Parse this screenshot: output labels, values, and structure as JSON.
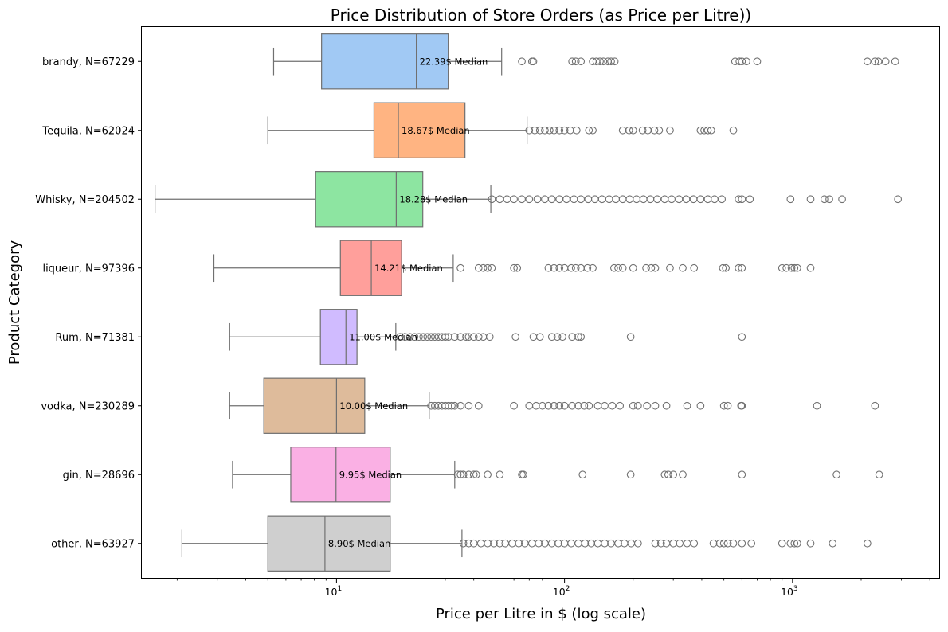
{
  "chart_data": {
    "type": "boxplot",
    "title": "Price Distribution of Store Orders (as Price per Litre))",
    "xlabel": "Price per Litre in $ (log scale)",
    "ylabel": "Product Category",
    "xscale": "log",
    "xlim": [
      1.4,
      4400
    ],
    "x_ticks": [
      {
        "value": 10,
        "base": "10",
        "exp": "1"
      },
      {
        "value": 100,
        "base": "10",
        "exp": "2"
      },
      {
        "value": 1000,
        "base": "10",
        "exp": "3"
      }
    ],
    "grid": false,
    "categories": [
      {
        "label": "brandy, N=67229",
        "color": "#a1c9f4",
        "whisker_low": 5.3,
        "q1": 8.6,
        "median": 22.39,
        "q3": 30.9,
        "whisker_high": 53.0,
        "median_label": "22.39$ Median",
        "outliers": [
          65,
          72,
          73,
          108,
          112,
          118,
          133,
          138,
          143,
          148,
          155,
          160,
          166,
          560,
          585,
          600,
          628,
          700,
          2130,
          2300,
          2380,
          2560,
          2820
        ]
      },
      {
        "label": "Tequila, N=62024",
        "color": "#ffb482",
        "whisker_low": 5.0,
        "q1": 14.6,
        "median": 18.67,
        "q3": 36.6,
        "whisker_high": 68.5,
        "median_label": "18.67$ Median",
        "outliers": [
          70,
          74,
          78,
          82,
          86,
          90,
          95,
          100,
          106,
          113,
          128,
          133,
          180,
          192,
          200,
          220,
          232,
          248,
          260,
          290,
          395,
          410,
          425,
          440,
          550
        ]
      },
      {
        "label": "Whisky, N=204502",
        "color": "#8de5a1",
        "whisker_low": 1.6,
        "q1": 8.1,
        "median": 18.28,
        "q3": 23.9,
        "whisker_high": 47.5,
        "median_label": "18.28$ Median",
        "outliers": [
          48,
          52,
          56,
          60,
          65,
          70,
          76,
          82,
          88,
          95,
          102,
          110,
          118,
          127,
          136,
          146,
          157,
          168,
          180,
          193,
          207,
          222,
          238,
          255,
          275,
          295,
          318,
          342,
          368,
          395,
          425,
          455,
          490,
          580,
          600,
          650,
          980,
          1200,
          1380,
          1450,
          1650,
          2900
        ]
      },
      {
        "label": "liqueur, N=97396",
        "color": "#ff9f9b",
        "whisker_low": 2.9,
        "q1": 10.4,
        "median": 14.21,
        "q3": 19.3,
        "whisker_high": 32.5,
        "median_label": "14.21$ Median",
        "outliers": [
          35,
          42,
          44,
          46,
          48,
          60,
          62,
          85,
          90,
          95,
          100,
          107,
          112,
          118,
          126,
          133,
          165,
          172,
          180,
          200,
          228,
          240,
          250,
          290,
          330,
          370,
          495,
          510,
          580,
          600,
          900,
          940,
          990,
          1020,
          1050,
          1200
        ]
      },
      {
        "label": "Rum, N=71381",
        "color": "#d0bbff",
        "whisker_low": 3.4,
        "q1": 8.5,
        "median": 11.0,
        "q3": 12.3,
        "whisker_high": 18.2,
        "median_label": "11.00$ Median",
        "outliers": [
          19,
          20,
          21,
          22,
          23,
          24,
          25,
          26,
          27,
          28,
          29,
          30,
          31,
          33,
          35,
          37,
          38,
          40,
          42,
          44,
          47,
          61,
          73,
          78,
          88,
          93,
          98,
          108,
          115,
          118,
          195,
          600
        ]
      },
      {
        "label": "vodka, N=230289",
        "color": "#debb9b",
        "whisker_low": 3.4,
        "q1": 4.8,
        "median": 10.0,
        "q3": 13.3,
        "whisker_high": 25.5,
        "median_label": "10.00$ Median",
        "outliers": [
          26,
          27,
          28,
          29,
          30,
          31,
          32,
          33,
          35,
          38,
          42,
          60,
          70,
          75,
          80,
          85,
          90,
          95,
          100,
          108,
          115,
          122,
          128,
          140,
          150,
          162,
          175,
          200,
          210,
          230,
          250,
          280,
          345,
          395,
          500,
          520,
          595,
          600,
          1280,
          2300
        ]
      },
      {
        "label": "gin, N=28696",
        "color": "#fab0e4",
        "whisker_low": 3.5,
        "q1": 6.3,
        "median": 9.95,
        "q3": 17.2,
        "whisker_high": 33.0,
        "median_label": "9.95$ Median",
        "outliers": [
          34,
          35,
          36,
          38,
          40,
          41,
          46,
          52,
          65,
          66,
          120,
          195,
          275,
          285,
          300,
          330,
          600,
          1560,
          2400
        ]
      },
      {
        "label": "other, N=63927",
        "color": "#cfcfcf",
        "whisker_low": 2.1,
        "q1": 5.0,
        "median": 8.9,
        "q3": 17.2,
        "whisker_high": 35.5,
        "median_label": "8.90$ Median",
        "outliers": [
          36,
          38,
          40,
          43,
          46,
          49,
          52,
          55,
          59,
          63,
          67,
          72,
          77,
          82,
          88,
          94,
          100,
          107,
          115,
          123,
          131,
          140,
          150,
          160,
          172,
          183,
          196,
          210,
          250,
          265,
          280,
          300,
          320,
          345,
          370,
          450,
          480,
          500,
          520,
          550,
          600,
          660,
          900,
          980,
          1020,
          1050,
          1200,
          1500,
          2130
        ]
      }
    ]
  }
}
